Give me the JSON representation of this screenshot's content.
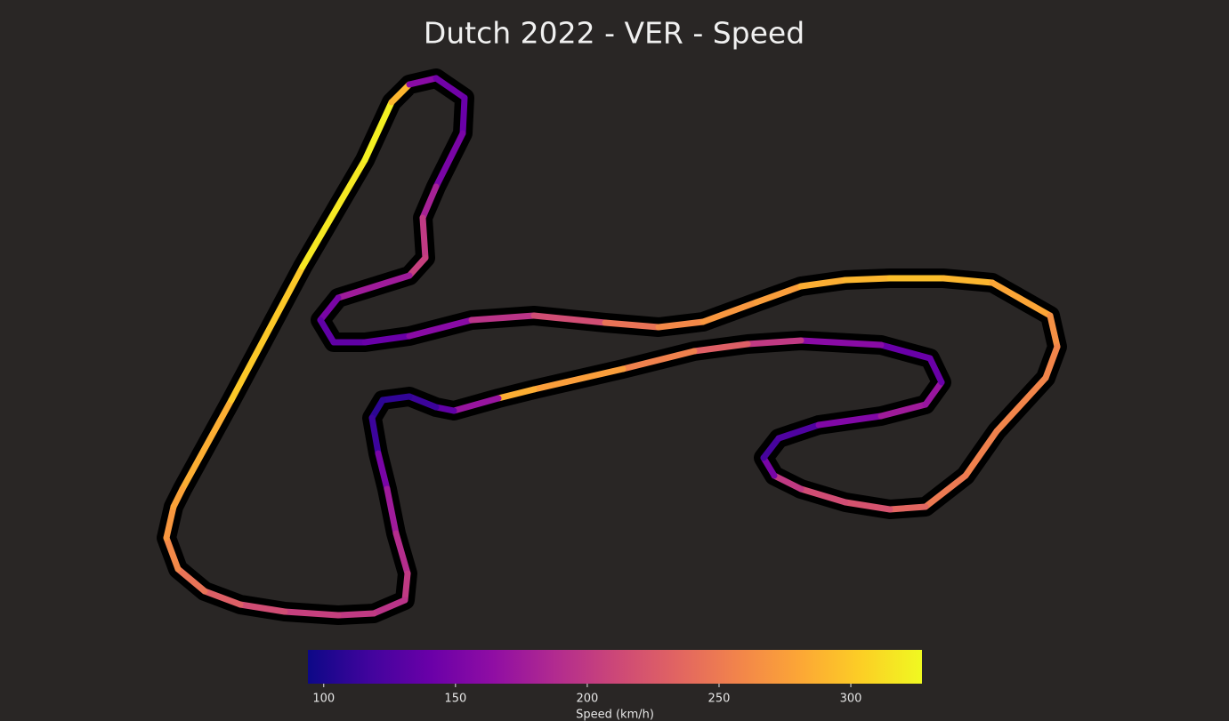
{
  "chart_data": {
    "type": "track",
    "title": "Dutch 2022 - VER - Speed",
    "x": [
      205,
      260,
      340,
      410,
      440,
      460,
      490,
      522,
      520,
      490,
      475,
      478,
      460,
      380,
      360,
      375,
      410,
      460,
      530,
      600,
      680,
      740,
      790,
      850,
      900,
      950,
      1000,
      1060,
      1115,
      1180,
      1188,
      1175,
      1120,
      1085,
      1040,
      1000,
      950,
      900,
      870,
      858,
      875,
      920,
      990,
      1040,
      1058,
      1045,
      990,
      900,
      840,
      780,
      700,
      600,
      560,
      510,
      490,
      460,
      430,
      418,
      425,
      435,
      445,
      458,
      455,
      420,
      380,
      320,
      270,
      230,
      200,
      187,
      195
    ],
    "y": [
      261,
      361,
      511,
      631,
      696,
      716,
      723,
      701,
      661,
      601,
      566,
      521,
      501,
      476,
      451,
      426,
      426,
      433,
      451,
      456,
      448,
      443,
      449,
      471,
      489,
      496,
      498,
      498,
      493,
      456,
      421,
      386,
      326,
      276,
      241,
      238,
      246,
      261,
      276,
      296,
      318,
      333,
      343,
      356,
      381,
      408,
      423,
      428,
      424,
      416,
      396,
      373,
      363,
      349,
      353,
      365,
      361,
      341,
      301,
      261,
      211,
      166,
      136,
      121,
      119,
      123,
      131,
      146,
      171,
      206,
      241
    ],
    "speed": [
      285,
      300,
      318,
      322,
      290,
      160,
      145,
      140,
      150,
      180,
      200,
      205,
      175,
      150,
      135,
      135,
      140,
      160,
      195,
      215,
      245,
      260,
      270,
      275,
      285,
      290,
      295,
      290,
      280,
      265,
      258,
      258,
      255,
      250,
      235,
      220,
      215,
      200,
      150,
      120,
      125,
      155,
      175,
      170,
      140,
      140,
      160,
      200,
      230,
      255,
      275,
      285,
      170,
      135,
      115,
      110,
      108,
      115,
      150,
      175,
      190,
      200,
      195,
      200,
      205,
      215,
      230,
      245,
      260,
      270,
      278
    ],
    "xlim": [
      0,
      1381
    ],
    "ylim": [
      0,
      811
    ],
    "colormap": "plasma",
    "clim": [
      94,
      327
    ],
    "cticks": [
      100,
      150,
      200,
      250,
      300
    ],
    "colorbar_label": "Speed (km/h)"
  }
}
